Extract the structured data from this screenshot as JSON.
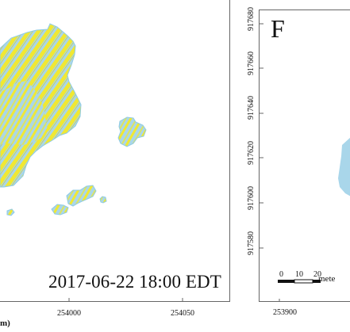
{
  "left_panel": {
    "timestamp": "2017-06-22 18:00 EDT",
    "x_ticks": [
      "254000",
      "254050"
    ],
    "x_unit": "m)"
  },
  "right_panel": {
    "letter": "F",
    "y_ticks": [
      "917680",
      "917660",
      "917640",
      "917620",
      "917600",
      "917580"
    ],
    "x_ticks": [
      "253900"
    ],
    "scale_labels": [
      "0",
      "10",
      "20"
    ],
    "scale_unit": "mete"
  },
  "colors": {
    "land_blue": "#a9d6ea",
    "land_yellow": "#f0e833",
    "border": "#666666"
  }
}
